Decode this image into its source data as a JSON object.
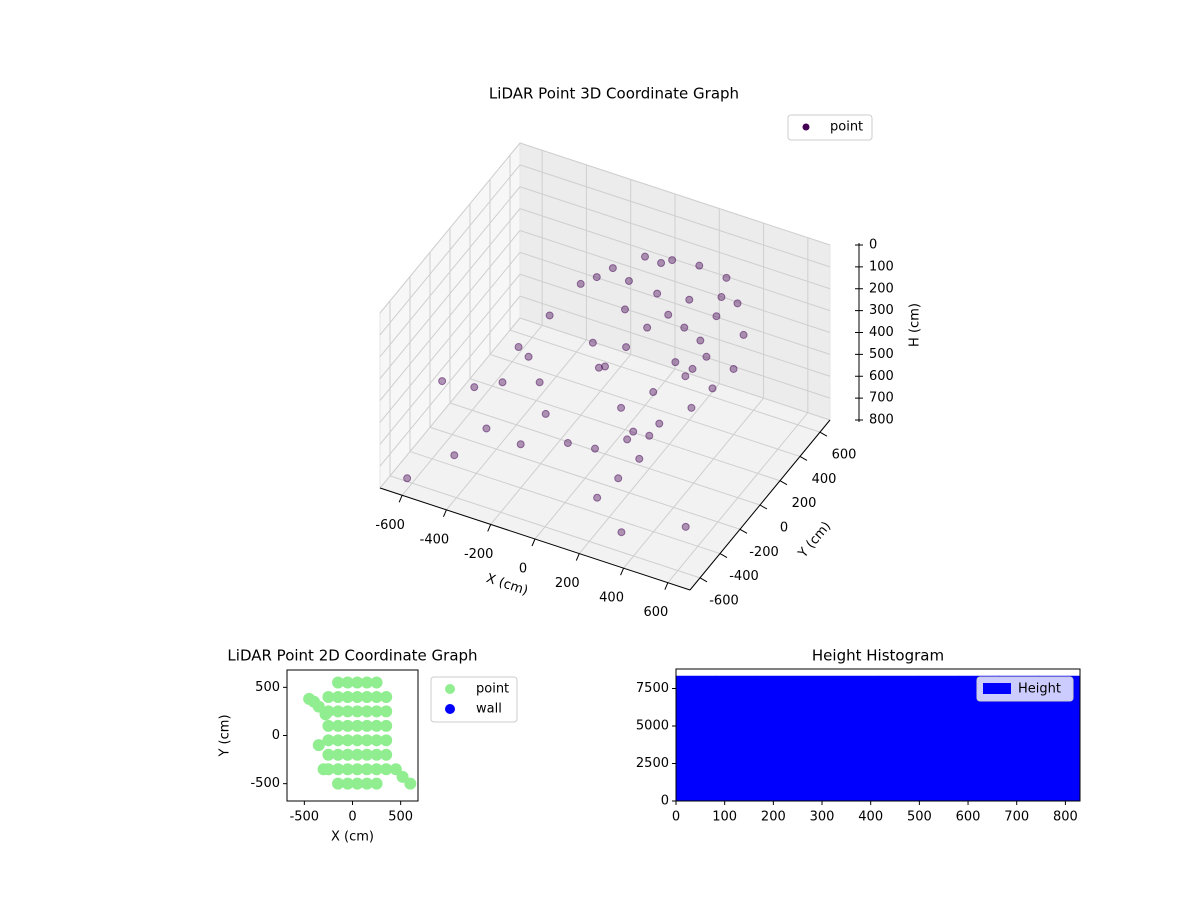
{
  "chart_data": [
    {
      "type": "scatter3d",
      "title": "LiDAR Point 3D Coordinate Graph",
      "xlabel": "X (cm)",
      "ylabel": "Y (cm)",
      "zlabel": "H (cm)",
      "xlim": [
        -700,
        700
      ],
      "ylim": [
        -700,
        700
      ],
      "zlim": [
        800,
        0
      ],
      "xticks": [
        -600,
        -400,
        -200,
        0,
        200,
        400,
        600
      ],
      "yticks": [
        -600,
        -400,
        -200,
        0,
        200,
        400,
        600
      ],
      "zticks": [
        0,
        100,
        200,
        300,
        400,
        500,
        600,
        700,
        800
      ],
      "grid": true,
      "legend": "upper right",
      "series": [
        {
          "name": "point",
          "color": "#440154",
          "x": [
            -300,
            -250,
            -200,
            -100,
            0,
            100,
            200,
            300,
            350,
            400,
            400,
            350,
            300,
            200,
            100,
            0,
            -100,
            -200,
            -250,
            -300,
            0,
            50,
            100,
            150,
            200,
            250,
            -50,
            -100,
            0,
            100,
            200,
            300,
            300,
            250,
            150,
            50,
            -600,
            -500,
            -400,
            -200,
            300,
            500,
            -600,
            -500,
            100,
            150,
            200,
            200,
            -350,
            -150,
            50,
            250,
            350,
            -50,
            150,
            300
          ],
          "y": [
            -200,
            0,
            200,
            300,
            400,
            450,
            500,
            550,
            550,
            500,
            400,
            300,
            200,
            100,
            0,
            -100,
            -150,
            -150,
            -100,
            -100,
            0,
            100,
            200,
            300,
            350,
            400,
            50,
            100,
            200,
            300,
            400,
            450,
            350,
            250,
            150,
            50,
            -650,
            -400,
            -300,
            -400,
            -500,
            -300,
            -300,
            -200,
            -300,
            -200,
            -100,
            0,
            -250,
            250,
            450,
            150,
            100,
            350,
            -50,
            500
          ],
          "z": [
            300,
            250,
            200,
            150,
            120,
            130,
            150,
            200,
            300,
            400,
            500,
            550,
            600,
            650,
            700,
            720,
            700,
            600,
            500,
            400,
            400,
            350,
            300,
            280,
            350,
            420,
            450,
            380,
            250,
            200,
            250,
            320,
            450,
            500,
            550,
            600,
            750,
            750,
            650,
            600,
            780,
            800,
            500,
            550,
            800,
            750,
            700,
            650,
            450,
            180,
            160,
            380,
            350,
            220,
            620,
            260
          ]
        }
      ]
    },
    {
      "type": "scatter",
      "title": "LiDAR Point 2D Coordinate Graph",
      "xlabel": "X (cm)",
      "ylabel": "Y (cm)",
      "xlim": [
        -680,
        680
      ],
      "ylim": [
        -680,
        680
      ],
      "xticks": [
        -500,
        0,
        500
      ],
      "yticks": [
        -500,
        0,
        500
      ],
      "legend": "outside right",
      "series": [
        {
          "name": "point",
          "color": "#90ee90",
          "x": [
            -150,
            -50,
            50,
            150,
            250,
            -250,
            -150,
            -50,
            50,
            150,
            250,
            350,
            -250,
            -150,
            -50,
            50,
            150,
            250,
            350,
            -250,
            -150,
            -50,
            50,
            150,
            250,
            350,
            -250,
            -150,
            -50,
            50,
            150,
            250,
            350,
            -250,
            -150,
            -50,
            50,
            150,
            250,
            350,
            -250,
            -150,
            -50,
            50,
            150,
            250,
            350,
            -150,
            -50,
            50,
            150,
            250,
            -450,
            -400,
            -350,
            -280,
            450,
            520,
            600,
            -350,
            -300
          ],
          "y": [
            550,
            550,
            550,
            550,
            550,
            400,
            400,
            400,
            400,
            400,
            400,
            400,
            250,
            250,
            250,
            250,
            250,
            250,
            250,
            100,
            100,
            100,
            100,
            100,
            100,
            100,
            -50,
            -50,
            -50,
            -50,
            -50,
            -50,
            -50,
            -200,
            -200,
            -200,
            -200,
            -200,
            -200,
            -200,
            -350,
            -350,
            -350,
            -350,
            -350,
            -350,
            -350,
            -500,
            -500,
            -500,
            -500,
            -500,
            380,
            350,
            300,
            220,
            -350,
            -430,
            -500,
            -100,
            -350
          ]
        },
        {
          "name": "wall",
          "color": "#0000ff",
          "x": [],
          "y": []
        }
      ]
    },
    {
      "type": "histogram",
      "title": "Height Histogram",
      "xlim": [
        0,
        830
      ],
      "ylim": [
        0,
        8800
      ],
      "xticks": [
        0,
        100,
        200,
        300,
        400,
        500,
        600,
        700,
        800
      ],
      "yticks": [
        0,
        2500,
        5000,
        7500
      ],
      "legend": "upper right",
      "bins": [
        0,
        83,
        166,
        249,
        332,
        415,
        498,
        581,
        664,
        747,
        830
      ],
      "series": [
        {
          "name": "Height",
          "color": "#0000ff",
          "values": [
            8350,
            8350,
            8350,
            8350,
            8350,
            8350,
            8350,
            8350,
            8350,
            8350
          ]
        }
      ]
    }
  ]
}
